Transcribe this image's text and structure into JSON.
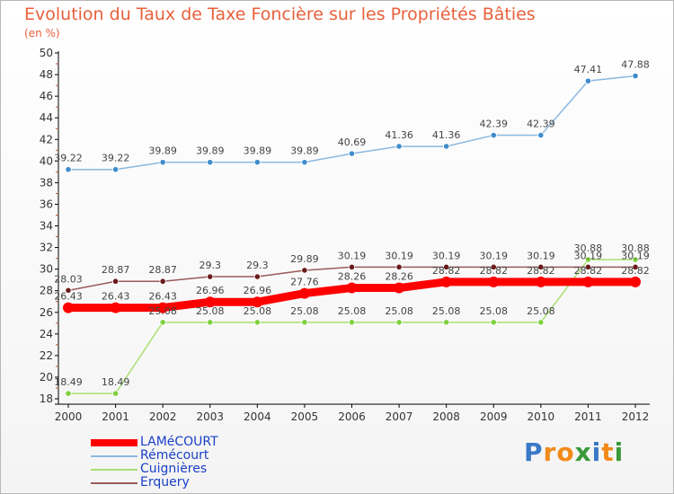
{
  "header": {
    "title": "Evolution du Taux de Taxe Foncière sur les Propriétés Bâties",
    "unit": "(en %)"
  },
  "logo": {
    "letters": [
      {
        "ch": "P",
        "color": "#3a78c8"
      },
      {
        "ch": "r",
        "color": "#f28a1a"
      },
      {
        "ch": "o",
        "color": "#f28a1a"
      },
      {
        "ch": "x",
        "color": "#3a9a3a"
      },
      {
        "ch": "i",
        "color": "#3a78c8"
      },
      {
        "ch": "t",
        "color": "#f28a1a"
      },
      {
        "ch": "i",
        "color": "#3a9a3a"
      }
    ]
  },
  "chart_data": {
    "type": "line",
    "title": "Evolution du Taux de Taxe Foncière sur les Propriétés Bâties",
    "xlabel": "",
    "ylabel": "(en %)",
    "x": [
      "2000",
      "2001",
      "2002",
      "2003",
      "2004",
      "2005",
      "2006",
      "2007",
      "2008",
      "2009",
      "2010",
      "2011",
      "2012"
    ],
    "ylim": [
      18,
      50
    ],
    "yticks": [
      18,
      20,
      22,
      24,
      26,
      28,
      30,
      32,
      34,
      36,
      38,
      40,
      42,
      44,
      46,
      48,
      50
    ],
    "grid": false,
    "legend": "bottom-left",
    "series": [
      {
        "name": "LAMéCOURT",
        "color": "#ff0000",
        "line_color": "#ff0000",
        "values": [
          26.43,
          26.43,
          26.43,
          26.96,
          26.96,
          27.76,
          28.26,
          28.26,
          28.82,
          28.82,
          28.82,
          28.82,
          28.82
        ],
        "labels": [
          "26.43",
          "26.43",
          "26.43",
          "26.96",
          "26.96",
          "27.76",
          "28.26",
          "28.26",
          "28.82",
          "28.82",
          "28.82",
          "28.82",
          "28.82"
        ]
      },
      {
        "name": "Rémécourt",
        "color": "#3f8ccc",
        "line_color": "#8ab8e0",
        "values": [
          39.22,
          39.22,
          39.89,
          39.89,
          39.89,
          39.89,
          40.69,
          41.36,
          41.36,
          42.39,
          42.39,
          47.41,
          47.88
        ],
        "labels": [
          "39.22",
          "39.22",
          "39.89",
          "39.89",
          "39.89",
          "39.89",
          "40.69",
          "41.36",
          "41.36",
          "42.39",
          "42.39",
          "47.41",
          "47.88"
        ]
      },
      {
        "name": "Cuignières",
        "color": "#80d040",
        "line_color": "#a8e070",
        "values": [
          18.49,
          18.49,
          25.08,
          25.08,
          25.08,
          25.08,
          25.08,
          25.08,
          25.08,
          25.08,
          25.08,
          30.88,
          30.88
        ],
        "labels": [
          "18.49",
          "18.49",
          "25.08",
          "25.08",
          "25.08",
          "25.08",
          "25.08",
          "25.08",
          "25.08",
          "25.08",
          "25.08",
          "30.88",
          "30.88"
        ]
      },
      {
        "name": "Erquery",
        "color": "#6a1a1a",
        "line_color": "#9a5a5a",
        "values": [
          28.03,
          28.87,
          28.87,
          29.3,
          29.3,
          29.89,
          30.19,
          30.19,
          30.19,
          30.19,
          30.19,
          30.19,
          30.19
        ],
        "labels": [
          "28.03",
          "28.87",
          "28.87",
          "29.3",
          "29.3",
          "29.89",
          "30.19",
          "30.19",
          "30.19",
          "30.19",
          "30.19",
          "30.19",
          "30.19"
        ]
      }
    ]
  }
}
